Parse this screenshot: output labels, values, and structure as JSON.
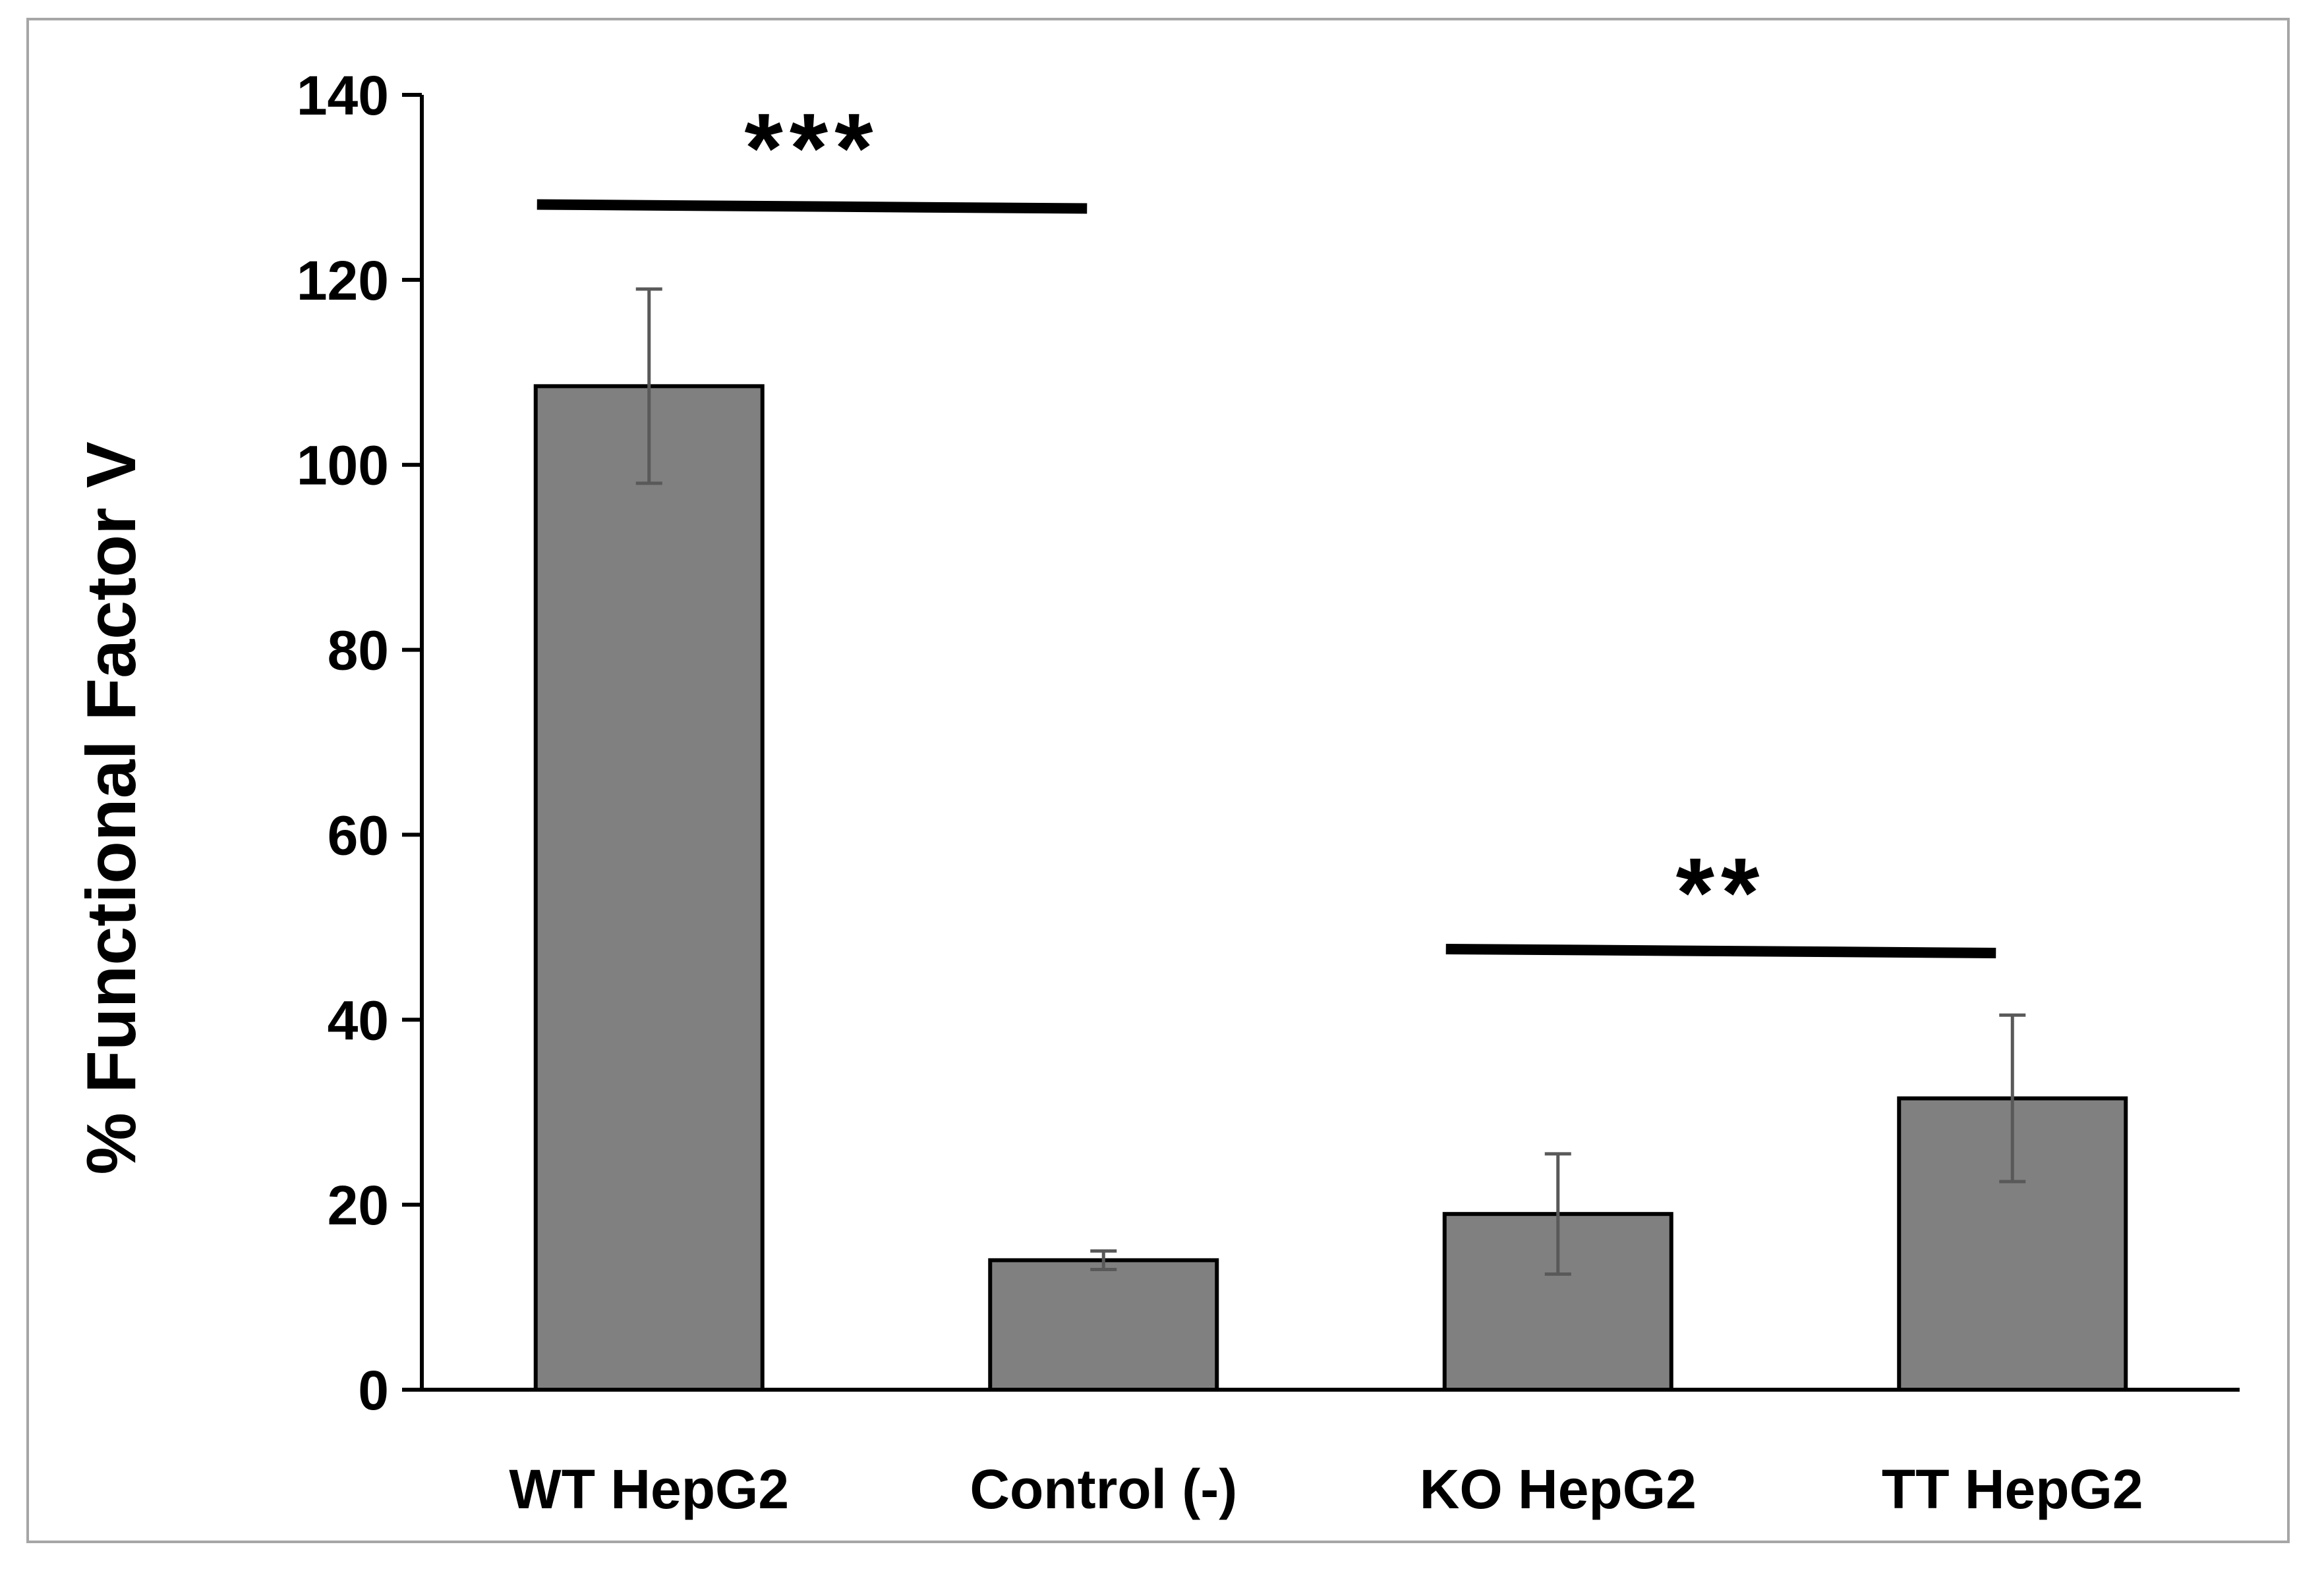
{
  "chart_data": {
    "type": "bar",
    "title": "",
    "xlabel": "",
    "ylabel": "% Functional Factor V",
    "ylim": [
      0,
      140
    ],
    "yticks": [
      0,
      20,
      40,
      60,
      80,
      100,
      120,
      140
    ],
    "ytick_labels": [
      "0",
      "20",
      "40",
      "60",
      "80",
      "100",
      "120",
      "140"
    ],
    "grid": false,
    "legend": "none",
    "categories": [
      "WT HepG2",
      "Control (-)",
      "KO HepG2",
      "TT HepG2"
    ],
    "values": [
      108.5,
      14,
      19,
      31.5
    ],
    "error": [
      10.5,
      1,
      6.5,
      9
    ],
    "significance": [
      {
        "label": "***",
        "from": 0,
        "to": 1,
        "y": 128
      },
      {
        "label": "**",
        "from": 2,
        "to": 3,
        "y": 47.5
      }
    ],
    "colors": {
      "bar_fill": "#808080",
      "bar_edge": "#000000",
      "error_bar": "#595959",
      "axis": "#000000",
      "frame": "#a6a6a6"
    }
  }
}
